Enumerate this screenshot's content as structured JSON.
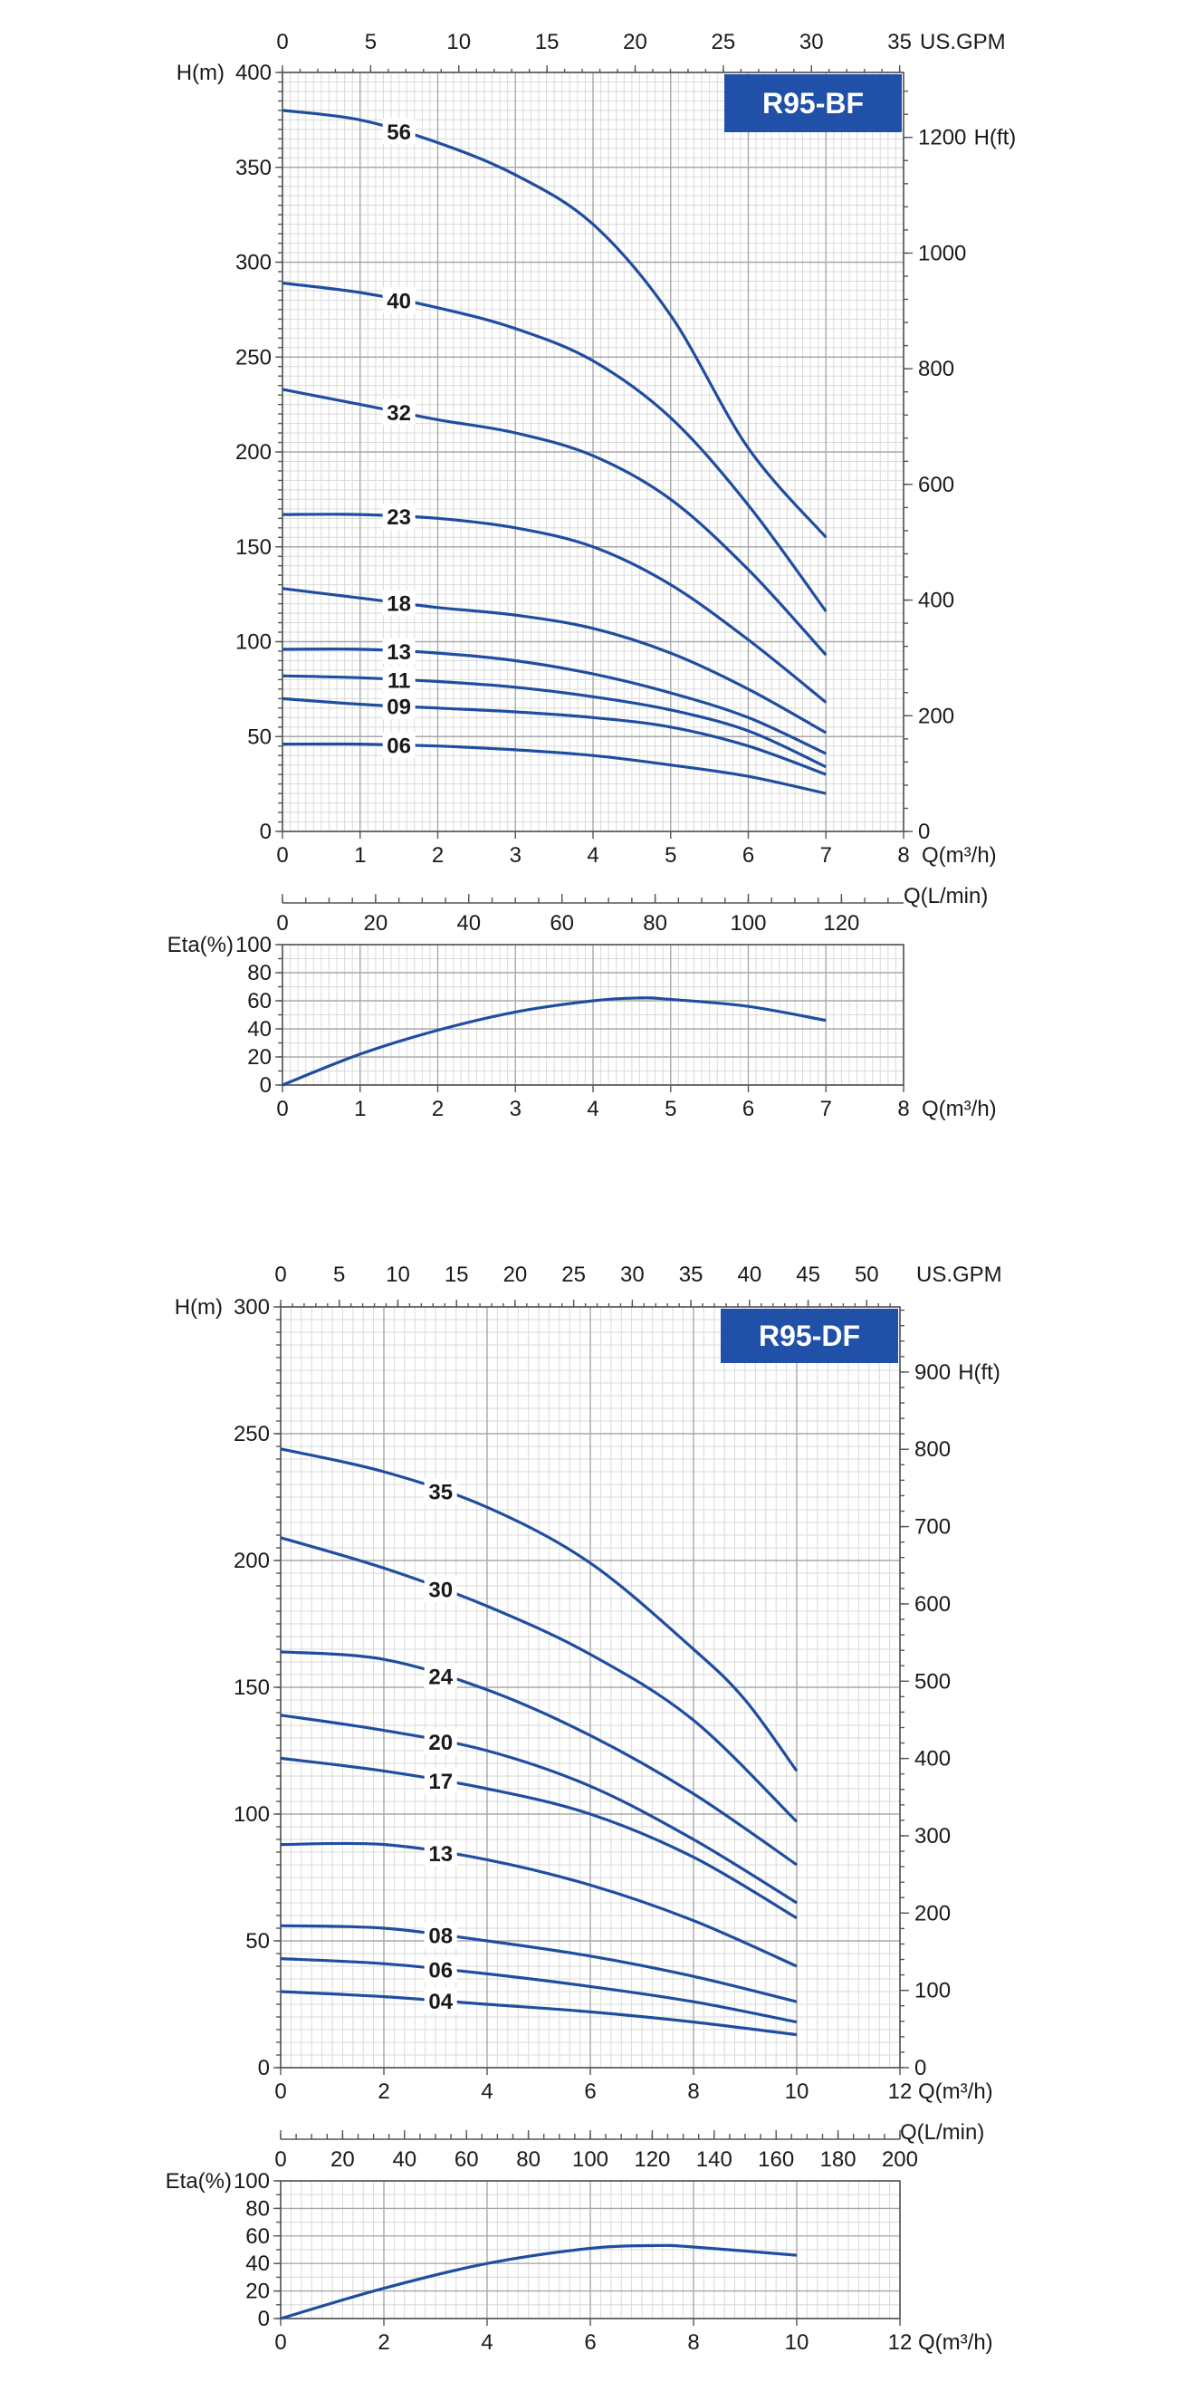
{
  "colors": {
    "curve": "#1f4da0",
    "badge": "#2150a8",
    "badge_text": "#ffffff"
  },
  "chart_data": [
    {
      "id": "bf-head",
      "type": "line",
      "badge": "R95-BF",
      "xlabel": "Q(m³/h)",
      "ylabel": "H(m)",
      "top_axis_label": "US.GPM",
      "right_axis_label": "H(ft)",
      "xlim": [
        0,
        8
      ],
      "ylim": [
        0,
        400
      ],
      "x_ticks": [
        0,
        1,
        2,
        3,
        4,
        5,
        6,
        7,
        8
      ],
      "y_ticks": [
        0,
        50,
        100,
        150,
        200,
        250,
        300,
        350,
        400
      ],
      "top_ticks": [
        0,
        5,
        10,
        15,
        20,
        25,
        30,
        35
      ],
      "right_ticks": [
        0,
        200,
        400,
        600,
        800,
        1000,
        1200
      ],
      "grid": true,
      "series": [
        {
          "name": "56",
          "label_at": 1.5,
          "x": [
            0,
            1,
            2,
            3,
            4,
            5,
            6,
            7
          ],
          "y": [
            380,
            375,
            363,
            346,
            320,
            272,
            202,
            155
          ]
        },
        {
          "name": "40",
          "label_at": 1.5,
          "x": [
            0,
            1,
            2,
            3,
            4,
            5,
            6,
            7
          ],
          "y": [
            289,
            284,
            276,
            265,
            248,
            218,
            172,
            116
          ]
        },
        {
          "name": "32",
          "label_at": 1.5,
          "x": [
            0,
            1,
            2,
            3,
            4,
            5,
            6,
            7
          ],
          "y": [
            233,
            225,
            217,
            210,
            198,
            175,
            138,
            93
          ]
        },
        {
          "name": "23",
          "label_at": 1.5,
          "x": [
            0,
            1,
            2,
            3,
            4,
            5,
            6,
            7
          ],
          "y": [
            167,
            167,
            165,
            160,
            150,
            130,
            101,
            68
          ]
        },
        {
          "name": "18",
          "label_at": 1.5,
          "x": [
            0,
            1,
            2,
            3,
            4,
            5,
            6,
            7
          ],
          "y": [
            128,
            123,
            118,
            114,
            107,
            94,
            75,
            52
          ]
        },
        {
          "name": "13",
          "label_at": 1.5,
          "x": [
            0,
            1,
            2,
            3,
            4,
            5,
            6,
            7
          ],
          "y": [
            96,
            96,
            94,
            90,
            83,
            73,
            60,
            41
          ]
        },
        {
          "name": "11",
          "label_at": 1.5,
          "x": [
            0,
            1,
            2,
            3,
            4,
            5,
            6,
            7
          ],
          "y": [
            82,
            81,
            79,
            76,
            71,
            64,
            53,
            34
          ]
        },
        {
          "name": "09",
          "label_at": 1.5,
          "x": [
            0,
            1,
            2,
            3,
            4,
            5,
            6,
            7
          ],
          "y": [
            70,
            67,
            65,
            63,
            60,
            55,
            45,
            30
          ]
        },
        {
          "name": "06",
          "label_at": 1.5,
          "x": [
            0,
            1,
            2,
            3,
            4,
            5,
            6,
            7
          ],
          "y": [
            46,
            46,
            45,
            43,
            40,
            35,
            29,
            20
          ]
        }
      ]
    },
    {
      "id": "bf-eta",
      "type": "line",
      "xlabel": "Q(m³/h)",
      "ylabel": "Eta(%)",
      "top_axis_label": "Q(L/min)",
      "xlim": [
        0,
        8
      ],
      "ylim": [
        0,
        100
      ],
      "x_ticks": [
        0,
        1,
        2,
        3,
        4,
        5,
        6,
        7,
        8
      ],
      "y_ticks": [
        0,
        20,
        40,
        60,
        80,
        100
      ],
      "top_ticks": [
        0,
        20,
        40,
        60,
        80,
        100,
        120
      ],
      "grid": true,
      "series": [
        {
          "x": [
            0,
            1,
            2,
            3,
            4,
            4.6,
            5,
            6,
            7
          ],
          "y": [
            0,
            22,
            39,
            52,
            60,
            62,
            61,
            56,
            46
          ]
        }
      ]
    },
    {
      "id": "df-head",
      "type": "line",
      "badge": "R95-DF",
      "xlabel": "Q(m³/h)",
      "ylabel": "H(m)",
      "top_axis_label": "US.GPM",
      "right_axis_label": "H(ft)",
      "xlim": [
        0,
        12
      ],
      "ylim": [
        0,
        300
      ],
      "x_ticks": [
        0,
        2,
        4,
        6,
        8,
        10,
        12
      ],
      "y_ticks": [
        0,
        50,
        100,
        150,
        200,
        250,
        300
      ],
      "top_ticks": [
        0,
        5,
        10,
        15,
        20,
        25,
        30,
        35,
        40,
        45,
        50
      ],
      "right_ticks": [
        0,
        100,
        200,
        300,
        400,
        500,
        600,
        700,
        800,
        900
      ],
      "grid": true,
      "series": [
        {
          "name": "35",
          "label_at": 3.1,
          "x": [
            0,
            2,
            4,
            6,
            8,
            9,
            10
          ],
          "y": [
            244,
            235,
            221,
            199,
            165,
            145,
            117
          ]
        },
        {
          "name": "30",
          "label_at": 3.1,
          "x": [
            0,
            2,
            4,
            6,
            8,
            10
          ],
          "y": [
            209,
            197,
            182,
            163,
            137,
            97
          ]
        },
        {
          "name": "24",
          "label_at": 3.1,
          "x": [
            0,
            2,
            4,
            6,
            8,
            10
          ],
          "y": [
            164,
            161,
            149,
            131,
            108,
            80
          ]
        },
        {
          "name": "20",
          "label_at": 3.1,
          "x": [
            0,
            2,
            4,
            6,
            8,
            10
          ],
          "y": [
            139,
            133,
            125,
            111,
            90,
            65
          ]
        },
        {
          "name": "17",
          "label_at": 3.1,
          "x": [
            0,
            2,
            4,
            6,
            8,
            10
          ],
          "y": [
            122,
            117,
            110,
            100,
            83,
            59
          ]
        },
        {
          "name": "13",
          "label_at": 3.1,
          "x": [
            0,
            2,
            4,
            6,
            8,
            10
          ],
          "y": [
            88,
            88,
            82,
            72,
            58,
            40
          ]
        },
        {
          "name": "08",
          "label_at": 3.1,
          "x": [
            0,
            2,
            4,
            6,
            8,
            10
          ],
          "y": [
            56,
            55,
            50,
            44,
            36,
            26
          ]
        },
        {
          "name": "06",
          "label_at": 3.1,
          "x": [
            0,
            2,
            4,
            6,
            8,
            10
          ],
          "y": [
            43,
            41,
            37,
            32,
            26,
            18
          ]
        },
        {
          "name": "04",
          "label_at": 3.1,
          "x": [
            0,
            2,
            4,
            6,
            8,
            10
          ],
          "y": [
            30,
            28,
            25,
            22,
            18,
            13
          ]
        }
      ]
    },
    {
      "id": "df-eta",
      "type": "line",
      "xlabel": "Q(m³/h)",
      "ylabel": "Eta(%)",
      "top_axis_label": "Q(L/min)",
      "xlim": [
        0,
        12
      ],
      "ylim": [
        0,
        100
      ],
      "x_ticks": [
        0,
        2,
        4,
        6,
        8,
        10,
        12
      ],
      "y_ticks": [
        0,
        20,
        40,
        60,
        80,
        100
      ],
      "top_ticks": [
        0,
        20,
        40,
        60,
        80,
        100,
        120,
        140,
        160,
        180,
        200
      ],
      "grid": true,
      "series": [
        {
          "x": [
            0,
            2,
            4,
            6,
            7.3,
            8,
            10
          ],
          "y": [
            0,
            22,
            40,
            51,
            53,
            52,
            46
          ]
        }
      ]
    }
  ]
}
